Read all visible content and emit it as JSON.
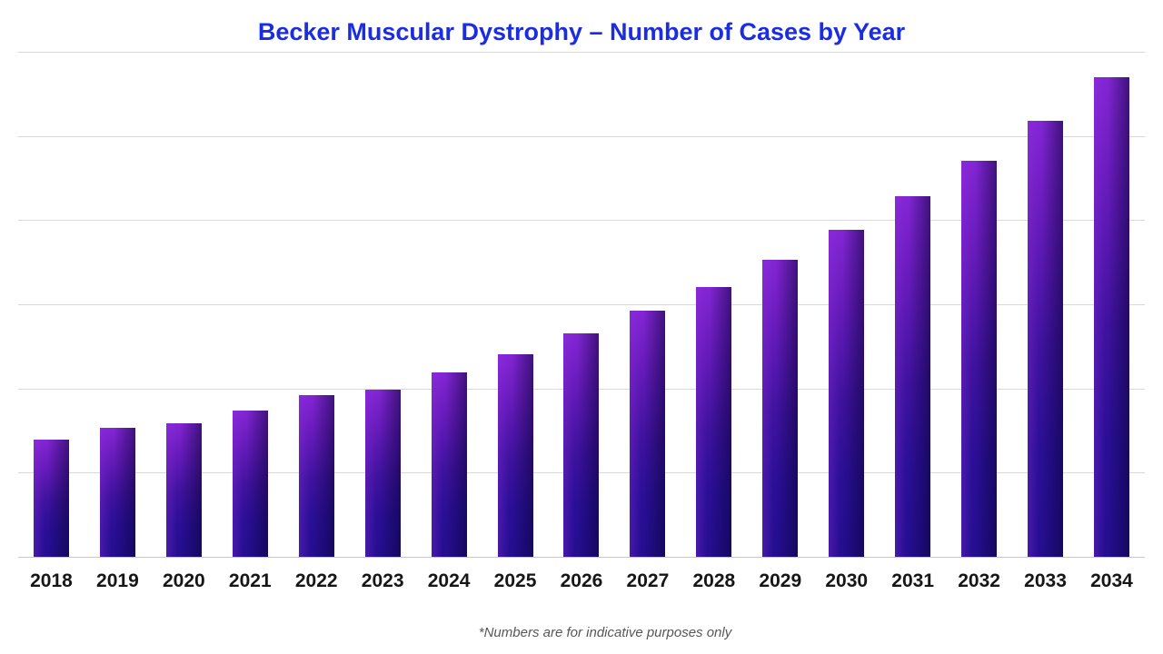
{
  "title": "Becker Muscular Dystrophy – Number of Cases by Year",
  "footnote": "*Numbers are for indicative purposes only",
  "colors": {
    "background": "#ffffff",
    "title": "#1b2de0",
    "axis_label": "#161616",
    "footnote": "#575757",
    "gridline": "#d9d9d9",
    "axis_line": "#c7c7c7",
    "bar_gradient_top": "#8326d4",
    "bar_gradient_upper": "#6b1cbe",
    "bar_gradient_mid": "#3f129e",
    "bar_gradient_lower": "#2a0f96",
    "bar_gradient_bottom": "#250e90",
    "bar_right_shade": "rgba(8,3,55,0.55)",
    "bar_left_sheen": "rgba(150,50,230,0.30)"
  },
  "chart_data": {
    "type": "bar",
    "title": "Becker Muscular Dystrophy – Number of Cases by Year",
    "series_name": "Number of Cases",
    "categories": [
      "2018",
      "2019",
      "2020",
      "2021",
      "2022",
      "2023",
      "2024",
      "2025",
      "2026",
      "2027",
      "2028",
      "2029",
      "2030",
      "2031",
      "2032",
      "2033",
      "2034"
    ],
    "values": [
      139,
      153,
      159,
      174,
      192,
      199,
      219,
      241,
      266,
      292,
      320,
      353,
      389,
      428,
      471,
      518,
      570
    ],
    "xlabel": "",
    "ylabel": "",
    "ylim": [
      0,
      600
    ],
    "gridline_step": 100,
    "grid": true,
    "y_axis_labels_shown": false,
    "values_are_estimates": true,
    "legend": false,
    "annotation": "*Numbers are for indicative purposes only"
  }
}
